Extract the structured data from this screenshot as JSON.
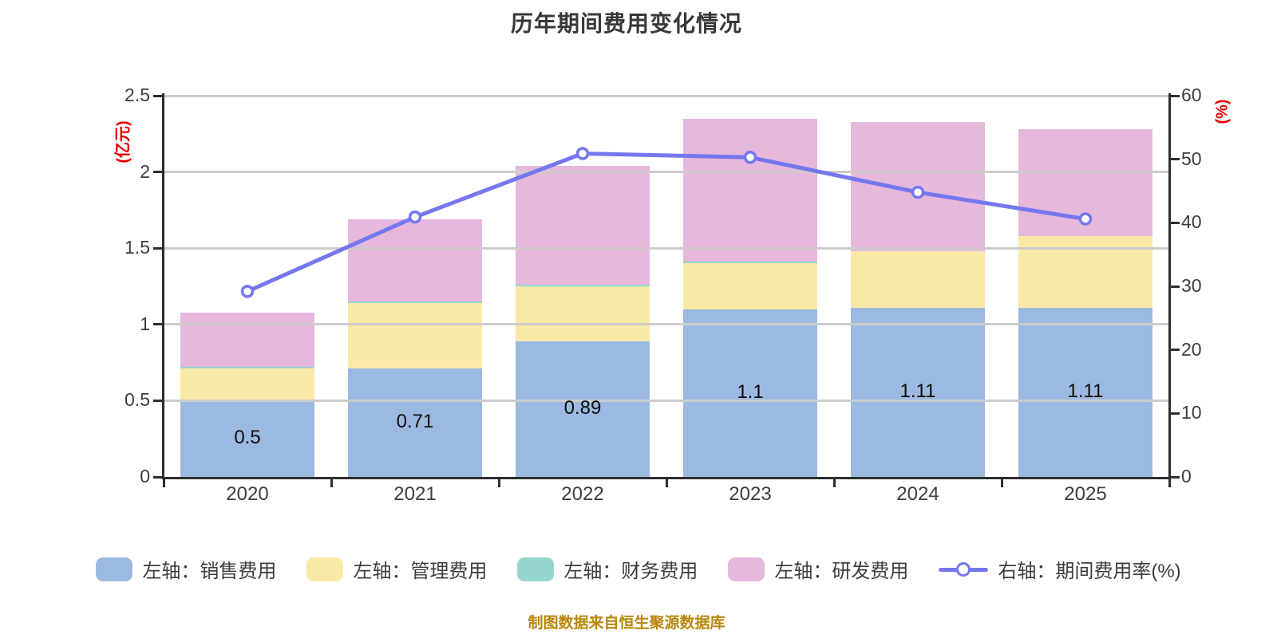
{
  "page": {
    "background": "#ffffff"
  },
  "header": {
    "title": "历年期间费用变化情况"
  },
  "footer": {
    "source_note": "制图数据来自恒生聚源数据库",
    "color": "#b8860b"
  },
  "chart_data": {
    "type": "bar",
    "variant": "stacked-bars-with-right-axis-line",
    "title": "历年期间费用变化情况",
    "categories": [
      "2020",
      "2021",
      "2022",
      "2023",
      "2024",
      "2025"
    ],
    "series": [
      {
        "key": "sales",
        "name": "左轴：销售费用",
        "type": "bar",
        "axis": "left",
        "color": "#9cb9e1",
        "values": [
          0.5,
          0.71,
          0.89,
          1.1,
          1.11,
          1.11
        ]
      },
      {
        "key": "admin",
        "name": "左轴：管理费用",
        "type": "bar",
        "axis": "left",
        "color": "#f8e9a7",
        "values": [
          0.21,
          0.43,
          0.36,
          0.3,
          0.37,
          0.47
        ]
      },
      {
        "key": "finance",
        "name": "左轴：财务费用",
        "type": "bar",
        "axis": "left",
        "color": "#96d5cc",
        "values": [
          0.01,
          0.01,
          0.01,
          0.01,
          0,
          0
        ]
      },
      {
        "key": "rd",
        "name": "左轴：研发费用",
        "type": "bar",
        "axis": "left",
        "color": "#e5b8dc",
        "values": [
          0.36,
          0.54,
          0.78,
          0.94,
          0.85,
          0.7
        ]
      },
      {
        "key": "rate",
        "name": "右轴：期间费用率(%)",
        "type": "line",
        "axis": "right",
        "color": "#7577ee",
        "values": [
          29.2,
          40.9,
          50.9,
          50.3,
          44.8,
          40.6
        ]
      }
    ],
    "bar_value_labels": [
      "0.5",
      "0.71",
      "0.89",
      "1.1",
      "1.11",
      "1.11"
    ],
    "left_axis": {
      "label": "(亿元)",
      "label_color": "#e60000",
      "min": 0,
      "max": 2.5,
      "tick_values": [
        0,
        0.5,
        1,
        1.5,
        2,
        2.5
      ],
      "tick_labels": [
        "0",
        "0.5",
        "1",
        "1.5",
        "2",
        "2.5"
      ]
    },
    "right_axis": {
      "label": "(%)",
      "label_color": "#e60000",
      "min": 0,
      "max": 60,
      "tick_values": [
        0,
        10,
        20,
        30,
        40,
        50,
        60
      ],
      "tick_labels": [
        "0",
        "10",
        "20",
        "30",
        "40",
        "50",
        "60"
      ]
    },
    "grid": {
      "show": true,
      "color": "#cccccc"
    },
    "legend_position": "bottom"
  }
}
